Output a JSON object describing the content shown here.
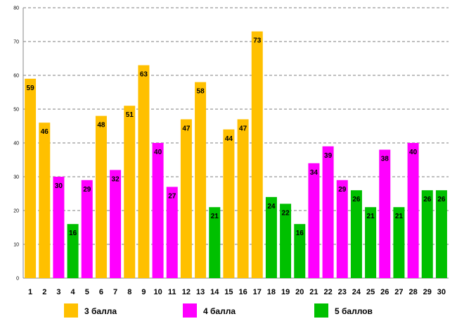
{
  "chart_data": {
    "type": "bar",
    "title": "",
    "xlabel": "",
    "ylabel": "",
    "ylim": [
      0,
      80
    ],
    "yticks": [
      0,
      10,
      20,
      30,
      40,
      50,
      60,
      70,
      80
    ],
    "grid": true,
    "legend_position": "bottom",
    "categories": [
      "1",
      "2",
      "3",
      "4",
      "5",
      "6",
      "7",
      "8",
      "9",
      "10",
      "11",
      "12",
      "13",
      "14",
      "15",
      "16",
      "17",
      "18",
      "19",
      "20",
      "21",
      "22",
      "23",
      "24",
      "25",
      "26",
      "27",
      "28",
      "29",
      "30"
    ],
    "values": [
      59,
      46,
      30,
      16,
      29,
      48,
      32,
      51,
      63,
      40,
      27,
      47,
      58,
      21,
      44,
      47,
      73,
      24,
      22,
      16,
      34,
      39,
      29,
      26,
      21,
      38,
      21,
      40,
      26,
      26
    ],
    "groups": [
      "3",
      "3",
      "4",
      "5",
      "4",
      "3",
      "4",
      "3",
      "3",
      "4",
      "4",
      "3",
      "3",
      "5",
      "3",
      "3",
      "3",
      "5",
      "5",
      "5",
      "4",
      "4",
      "4",
      "5",
      "5",
      "4",
      "5",
      "4",
      "5",
      "5"
    ],
    "series": [
      {
        "key": "3",
        "name": "3 балла",
        "color": "#FFC000"
      },
      {
        "key": "4",
        "name": "4 балла",
        "color": "#FF00FF"
      },
      {
        "key": "5",
        "name": "5 баллов",
        "color": "#00C000"
      }
    ]
  }
}
